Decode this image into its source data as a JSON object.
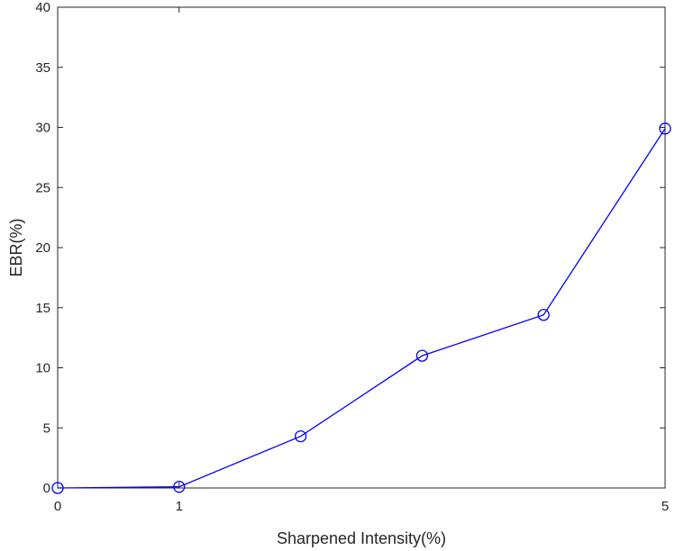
{
  "chart_data": {
    "type": "line",
    "title": "",
    "xlabel": "Sharpened Intensity(%)",
    "ylabel": "EBR(%)",
    "xlim": [
      0,
      5
    ],
    "ylim": [
      0,
      40
    ],
    "xticks": [
      0,
      1,
      5
    ],
    "xtick_labels": [
      "0",
      "1",
      "5"
    ],
    "yticks": [
      0,
      5,
      10,
      15,
      20,
      25,
      30,
      35,
      40
    ],
    "ytick_labels": [
      "0",
      "5",
      "10",
      "15",
      "20",
      "25",
      "30",
      "35",
      "40"
    ],
    "grid": false,
    "legend": "none",
    "series": [
      {
        "color": "#0000ff",
        "marker": "circle",
        "x": [
          0,
          1,
          2,
          3,
          4,
          5
        ],
        "y": [
          0,
          0.1,
          4.3,
          11.0,
          14.4,
          29.9
        ]
      }
    ]
  }
}
